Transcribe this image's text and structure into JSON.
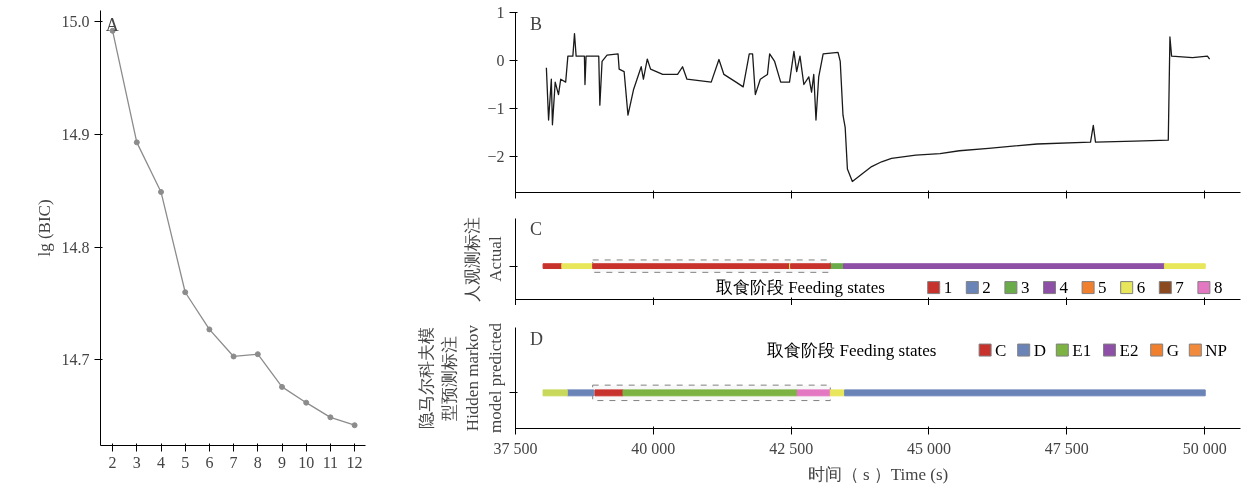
{
  "chart_data": [
    {
      "type": "line",
      "ylabel": "lg (BIC)",
      "annotations": [
        "A"
      ],
      "marker": "circle",
      "x": [
        2,
        3,
        4,
        5,
        6,
        7,
        8,
        9,
        10,
        11,
        12
      ],
      "series": [
        {
          "color": "#8c8c8c",
          "values": [
            14.992,
            14.893,
            14.849,
            14.76,
            14.727,
            14.703,
            14.705,
            14.676,
            14.662,
            14.649,
            14.642
          ]
        }
      ],
      "xlim": [
        1.5,
        12.45
      ],
      "xticks": [
        2,
        3,
        4,
        5,
        6,
        7,
        8,
        9,
        10,
        11,
        12
      ],
      "ylim": [
        14.624,
        15.01
      ],
      "yticks": [
        14.7,
        14.8,
        14.9,
        {
          "value": 15.0,
          "label": "15.0"
        }
      ]
    },
    {
      "type": "line",
      "annotations": [
        "B"
      ],
      "tick_labels": "y",
      "x": [
        38060,
        38100,
        38150,
        38170,
        38220,
        38280,
        38320,
        38410,
        38450,
        38540,
        38570,
        38600,
        38750,
        38760,
        38780,
        39010,
        39030,
        39070,
        39160,
        39360,
        39380,
        39470,
        39540,
        39640,
        39780,
        39820,
        39890,
        39950,
        40170,
        40440,
        40530,
        40610,
        41050,
        41190,
        41280,
        41500,
        41630,
        41740,
        41800,
        41850,
        41940,
        42070,
        42110,
        42200,
        42310,
        42470,
        42550,
        42600,
        42660,
        42730,
        42820,
        42870,
        42910,
        42950,
        43000,
        43080,
        43350,
        43390,
        43440,
        43480,
        43520,
        43610,
        43790,
        43960,
        44140,
        44320,
        44760,
        45200,
        45550,
        46080,
        46960,
        47930,
        47980,
        48020,
        48730,
        49340,
        49370,
        49400,
        49780,
        50050,
        50090
      ],
      "series": [
        {
          "color": "#1a1a1a",
          "values": [
            -0.15,
            -1.24,
            -0.39,
            -1.34,
            -0.45,
            -0.71,
            -0.39,
            -0.45,
            0.09,
            0.09,
            0.56,
            0.09,
            0.09,
            -0.5,
            0.09,
            0.09,
            -0.93,
            -0.02,
            0.11,
            0.14,
            -0.18,
            -0.23,
            -1.14,
            -0.61,
            -0.13,
            -0.39,
            0.03,
            -0.18,
            -0.29,
            -0.29,
            -0.13,
            -0.39,
            -0.45,
            0.02,
            -0.29,
            -0.45,
            -0.55,
            0.14,
            0.14,
            -0.71,
            -0.39,
            -0.29,
            0.14,
            -0.02,
            -0.45,
            -0.45,
            0.19,
            -0.23,
            0.09,
            -0.5,
            -0.34,
            -0.66,
            -0.29,
            -1.24,
            -0.34,
            0.14,
            0.17,
            -0.02,
            -1.14,
            -1.4,
            -2.26,
            -2.52,
            -2.36,
            -2.21,
            -2.11,
            -2.04,
            -1.97,
            -1.94,
            -1.88,
            -1.83,
            -1.74,
            -1.7,
            -1.35,
            -1.7,
            -1.68,
            -1.66,
            0.49,
            0.09,
            0.06,
            0.09,
            0.03
          ]
        }
      ],
      "xlim": [
        37500,
        50650
      ],
      "xticks": [
        {
          "value": 37500,
          "label": "37 500"
        },
        {
          "value": 40000,
          "label": "40 000"
        },
        {
          "value": 42500,
          "label": "42 500"
        },
        {
          "value": 45000,
          "label": "45 000"
        },
        {
          "value": 47500,
          "label": "47 500"
        },
        {
          "value": 50000,
          "label": "50 000"
        }
      ],
      "ylim": [
        -2.75,
        1
      ],
      "yticks": [
        1,
        0,
        {
          "value": -1,
          "label": "−1"
        },
        {
          "value": -2,
          "label": "−2"
        }
      ]
    },
    {
      "type": "bar",
      "orientation": "horizontal",
      "annotations": [
        "C"
      ],
      "ylabel": "人观测标注 Actual",
      "tick_labels": false,
      "categories": [
        null
      ],
      "legend": "bottom right",
      "legend_title": "取食阶段 Feeding states",
      "series": [
        {
          "name": "1",
          "color": "#c8322d",
          "base": [
            38000
          ],
          "values": [
            340
          ]
        },
        {
          "name": "2",
          "color": "#6b84b8",
          "values": [
            null
          ]
        },
        {
          "name": "3",
          "color": "#6aab4a",
          "base": [
            43210
          ],
          "values": [
            240
          ]
        },
        {
          "name": "4",
          "color": "#8e4fa6",
          "base": [
            43450
          ],
          "values": [
            5820
          ]
        },
        {
          "name": "5",
          "color": "#f0802e",
          "values": [
            null
          ]
        },
        {
          "name": "6",
          "color": "#e8e65a",
          "base": [
            38340
          ],
          "values": [
            560
          ]
        },
        {
          "name": "7",
          "color": "#8b4a1f",
          "values": [
            null
          ]
        },
        {
          "name": "8",
          "color": "#e377c2",
          "values": [
            null
          ]
        },
        {
          "color": "#c8322d",
          "base": [
            38900
          ],
          "values": [
            3570
          ]
        },
        {
          "color": "#e8e65a",
          "base": [
            42470
          ],
          "values": [
            20
          ]
        },
        {
          "color": "#c8322d",
          "base": [
            42490
          ],
          "values": [
            720
          ]
        },
        {
          "color": "#e8e65a",
          "base": [
            49270
          ],
          "values": [
            740
          ]
        }
      ],
      "bands": [
        {
          "axis": "x",
          "from": 38900,
          "to": 43210,
          "color": "#808080"
        }
      ],
      "xlim": [
        37500,
        50650
      ],
      "xticks": [
        {
          "value": 37500,
          "label": "37 500"
        },
        {
          "value": 40000,
          "label": "40 000"
        },
        {
          "value": 42500,
          "label": "42 500"
        },
        {
          "value": 45000,
          "label": "45 000"
        },
        {
          "value": 47500,
          "label": "47 500"
        },
        {
          "value": 50000,
          "label": "50 000"
        }
      ]
    },
    {
      "type": "bar",
      "orientation": "horizontal",
      "annotations": [
        "D"
      ],
      "ylabel": "隐马尔科夫模型预测标注 Hidden markov model predicted",
      "xlabel": "时间（ s ）Time (s)",
      "tick_labels": "x",
      "categories": [
        null
      ],
      "legend": "top right",
      "legend_title": "取食阶段 Feeding states",
      "series": [
        {
          "name": "C",
          "color": "#c8322d",
          "base": [
            38940
          ],
          "values": [
            510
          ]
        },
        {
          "name": "D",
          "color": "#6b84b8",
          "base": [
            38440
          ],
          "values": [
            480
          ]
        },
        {
          "name": "E1",
          "color": "#7cb342",
          "base": [
            39450
          ],
          "values": [
            3160
          ]
        },
        {
          "name": "E2",
          "color": "#8e4fa6",
          "values": [
            null
          ]
        },
        {
          "name": "G",
          "color": "#f0802e",
          "values": [
            null
          ]
        },
        {
          "name": "NP",
          "color": "#f28a3c",
          "values": [
            null
          ]
        },
        {
          "color": "#c8d85a",
          "base": [
            38000
          ],
          "values": [
            440
          ]
        },
        {
          "color": "#e377c2",
          "base": [
            42610
          ],
          "values": [
            600
          ]
        },
        {
          "color": "#e8e65a",
          "base": [
            43210
          ],
          "values": [
            260
          ]
        },
        {
          "color": "#6b84b8",
          "base": [
            43470
          ],
          "values": [
            6540
          ]
        }
      ],
      "bands": [
        {
          "axis": "x",
          "from": 38900,
          "to": 43210,
          "color": "#808080"
        }
      ],
      "xlim": [
        37500,
        50650
      ],
      "xticks": [
        {
          "value": 37500,
          "label": "37 500"
        },
        {
          "value": 40000,
          "label": "40 000"
        },
        {
          "value": 42500,
          "label": "42 500"
        },
        {
          "value": 45000,
          "label": "45 000"
        },
        {
          "value": 47500,
          "label": "47 500"
        },
        {
          "value": 50000,
          "label": "50 000"
        }
      ]
    }
  ]
}
